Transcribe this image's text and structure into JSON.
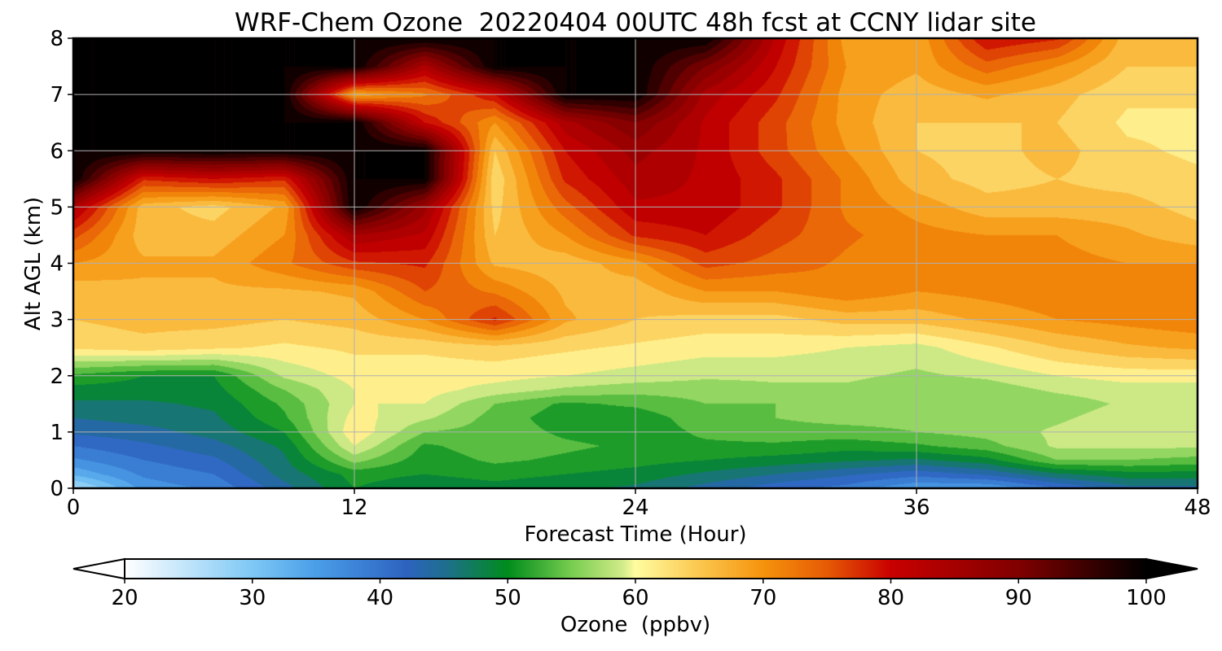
{
  "chart_data": {
    "type": "heatmap",
    "title": "WRF-Chem Ozone  20220404 00UTC 48h fcst at CCNY lidar site",
    "xlabel": "Forecast Time (Hour)",
    "ylabel": "Alt AGL (km)",
    "xlim": [
      0,
      48
    ],
    "ylim": [
      0,
      8
    ],
    "xticks": [
      0,
      12,
      24,
      36,
      48
    ],
    "yticks": [
      0,
      1,
      2,
      3,
      4,
      5,
      6,
      7,
      8
    ],
    "grid": true,
    "value_units": "ppbv",
    "x": [
      0,
      3,
      6,
      9,
      12,
      15,
      18,
      21,
      24,
      27,
      30,
      33,
      36,
      39,
      42,
      45,
      48
    ],
    "y": [
      0,
      0.25,
      0.5,
      0.75,
      1,
      1.25,
      1.5,
      1.75,
      2,
      2.5,
      3,
      3.5,
      4,
      4.5,
      5,
      5.5,
      6,
      6.5,
      7,
      7.5,
      8
    ],
    "z": [
      [
        26,
        36,
        38,
        44,
        50,
        48,
        49,
        48,
        47,
        44,
        41,
        39,
        35,
        35,
        40,
        44,
        44
      ],
      [
        33,
        38,
        40,
        46,
        51,
        50,
        51,
        50,
        49,
        47,
        45,
        43,
        41,
        43,
        47,
        49,
        49
      ],
      [
        37,
        40,
        42,
        47,
        56,
        51,
        53,
        52,
        51,
        50,
        49,
        48,
        47,
        49,
        55,
        55,
        54
      ],
      [
        40,
        42,
        44,
        48,
        60,
        52,
        54,
        53,
        52,
        52,
        52,
        51,
        52,
        54,
        58,
        58,
        58
      ],
      [
        43,
        44,
        46,
        50,
        62,
        55,
        54,
        52,
        51,
        53,
        54,
        54,
        55,
        56,
        58,
        60,
        60
      ],
      [
        45,
        46,
        47,
        52,
        61,
        58,
        54,
        51,
        51,
        54,
        55,
        56,
        56,
        56,
        57,
        59,
        59
      ],
      [
        47,
        47,
        48,
        53,
        60,
        60,
        55,
        52,
        53,
        55,
        55,
        56,
        56,
        55,
        56,
        58,
        58
      ],
      [
        49,
        49,
        49,
        55,
        60,
        61,
        59,
        57,
        56,
        56,
        57,
        57,
        56,
        56,
        58,
        59,
        59
      ],
      [
        52,
        50,
        50,
        58,
        61,
        61,
        61,
        60,
        59,
        58,
        58,
        58,
        57,
        58,
        60,
        61,
        61
      ],
      [
        63,
        64,
        63,
        62,
        63,
        63,
        64,
        63,
        62,
        61,
        61,
        60,
        59,
        62,
        65,
        67,
        68
      ],
      [
        65,
        66,
        66,
        65,
        66,
        70,
        78,
        68,
        65,
        64,
        64,
        66,
        66,
        68,
        70,
        71,
        72
      ],
      [
        66,
        67,
        67,
        67,
        68,
        75,
        72,
        67,
        66,
        70,
        70,
        72,
        70,
        71,
        72,
        71,
        71
      ],
      [
        70,
        68,
        68,
        72,
        77,
        78,
        67,
        66,
        69,
        76,
        74,
        72,
        70,
        70,
        71,
        70,
        70
      ],
      [
        76,
        66,
        66,
        70,
        85,
        82,
        65,
        70,
        78,
        80,
        76,
        73,
        71,
        70,
        70,
        68,
        66
      ],
      [
        84,
        66,
        64,
        68,
        100,
        86,
        64,
        74,
        82,
        82,
        78,
        72,
        69,
        66,
        66,
        66,
        64
      ],
      [
        100,
        78,
        80,
        78,
        100,
        100,
        63,
        78,
        84,
        82,
        78,
        72,
        66,
        64,
        65,
        64,
        63
      ],
      [
        100,
        100,
        100,
        100,
        100,
        100,
        65,
        80,
        86,
        82,
        76,
        70,
        65,
        64,
        66,
        63,
        62
      ],
      [
        100,
        100,
        100,
        100,
        100,
        80,
        70,
        84,
        90,
        82,
        76,
        69,
        65,
        65,
        65,
        62,
        62
      ],
      [
        100,
        100,
        100,
        100,
        68,
        72,
        80,
        100,
        100,
        84,
        78,
        69,
        66,
        68,
        66,
        63,
        63
      ],
      [
        100,
        100,
        100,
        100,
        100,
        84,
        100,
        100,
        100,
        90,
        80,
        70,
        68,
        74,
        70,
        65,
        65
      ],
      [
        100,
        100,
        100,
        100,
        100,
        100,
        100,
        100,
        100,
        100,
        82,
        69,
        68,
        80,
        78,
        66,
        66
      ]
    ],
    "colorbar": {
      "label": "Ozone  (ppbv)",
      "min": 20,
      "max": 100,
      "ticks": [
        20,
        30,
        40,
        50,
        60,
        70,
        80,
        90,
        100
      ],
      "extend": "both",
      "stops": [
        {
          "value": 20,
          "color": "#ffffff"
        },
        {
          "value": 30,
          "color": "#7ec8f5"
        },
        {
          "value": 35,
          "color": "#4a9ee8"
        },
        {
          "value": 42,
          "color": "#2d63c0"
        },
        {
          "value": 45,
          "color": "#1f6e90"
        },
        {
          "value": 50,
          "color": "#008c1c"
        },
        {
          "value": 55,
          "color": "#77cd4f"
        },
        {
          "value": 59,
          "color": "#d2eb8a"
        },
        {
          "value": 60,
          "color": "#fffca0"
        },
        {
          "value": 65,
          "color": "#fbc74f"
        },
        {
          "value": 70,
          "color": "#f5930c"
        },
        {
          "value": 75,
          "color": "#e65a05"
        },
        {
          "value": 80,
          "color": "#c90000"
        },
        {
          "value": 90,
          "color": "#800000"
        },
        {
          "value": 100,
          "color": "#000000"
        }
      ]
    }
  }
}
